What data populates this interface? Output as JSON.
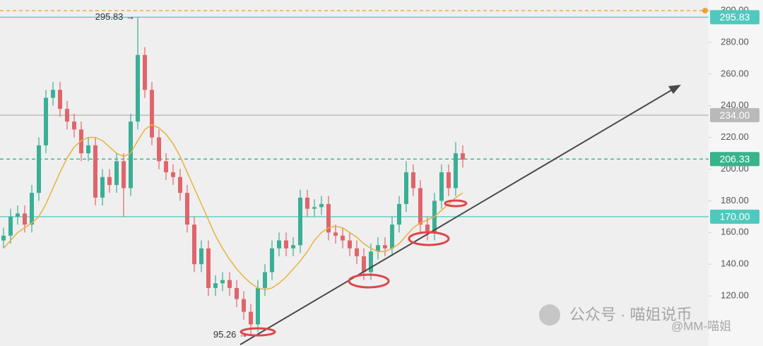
{
  "chart_data": {
    "type": "candlestick",
    "ylim": [
      88.4,
      306.7
    ],
    "yticks": [
      {
        "value": 120,
        "label": "120.00"
      },
      {
        "value": 140,
        "label": "140.00"
      },
      {
        "value": 160,
        "label": "160.00"
      },
      {
        "value": 180,
        "label": "180.00"
      },
      {
        "value": 200,
        "label": "200.00"
      },
      {
        "value": 220,
        "label": "220.00"
      },
      {
        "value": 240,
        "label": "240.00"
      },
      {
        "value": 260,
        "label": "260.00"
      },
      {
        "value": 280,
        "label": "280.00"
      },
      {
        "value": 300,
        "label": "300.00"
      }
    ],
    "up_color": "#3aaf95",
    "down_color": "#e0656a",
    "open": [
      155,
      158,
      170,
      172,
      165,
      185,
      215,
      245,
      250,
      238,
      230,
      225,
      210,
      215,
      182,
      195,
      190,
      205,
      188,
      230,
      272,
      250,
      220,
      205,
      198,
      195,
      185,
      165,
      140,
      150,
      125,
      128,
      130,
      125,
      118,
      110,
      102,
      125,
      135,
      150,
      155,
      150,
      152,
      182,
      175,
      176,
      178,
      160,
      158,
      155,
      150,
      145,
      135,
      148,
      152,
      150,
      165,
      178,
      198,
      188,
      165,
      160,
      180,
      198,
      188,
      210
    ],
    "high": [
      163,
      175,
      177,
      177,
      190,
      220,
      250,
      255,
      255,
      243,
      235,
      230,
      220,
      220,
      200,
      200,
      210,
      210,
      235,
      295.83,
      277,
      255,
      225,
      210,
      203,
      200,
      190,
      170,
      155,
      155,
      133,
      135,
      135,
      130,
      123,
      115,
      130,
      140,
      155,
      160,
      160,
      157,
      187,
      187,
      181,
      183,
      183,
      165,
      163,
      160,
      155,
      150,
      153,
      157,
      157,
      170,
      183,
      205,
      203,
      193,
      170,
      185,
      203,
      203,
      217,
      215
    ],
    "low": [
      150,
      153,
      165,
      160,
      160,
      180,
      210,
      240,
      233,
      225,
      220,
      205,
      205,
      177,
      177,
      185,
      185,
      170,
      183,
      225,
      245,
      215,
      200,
      193,
      190,
      180,
      160,
      135,
      135,
      120,
      120,
      123,
      120,
      113,
      105,
      95.26,
      97,
      120,
      130,
      145,
      145,
      145,
      147,
      170,
      170,
      171,
      155,
      153,
      150,
      145,
      140,
      130,
      130,
      143,
      145,
      145,
      160,
      173,
      183,
      160,
      155,
      155,
      175,
      183,
      183,
      201
    ],
    "close": [
      158,
      170,
      172,
      165,
      185,
      215,
      245,
      250,
      238,
      230,
      225,
      210,
      215,
      182,
      195,
      190,
      205,
      188,
      230,
      272,
      250,
      220,
      205,
      198,
      195,
      185,
      165,
      140,
      150,
      125,
      128,
      130,
      125,
      118,
      110,
      102,
      125,
      135,
      150,
      155,
      150,
      152,
      182,
      175,
      176,
      178,
      160,
      158,
      155,
      150,
      145,
      135,
      148,
      152,
      150,
      165,
      178,
      198,
      188,
      165,
      160,
      180,
      198,
      188,
      210,
      206
    ],
    "moving_average": {
      "color": "#e8b23a",
      "values": [
        150,
        155,
        160,
        163,
        166,
        170,
        178,
        188,
        198,
        207,
        214,
        218,
        220,
        220,
        218,
        214,
        210,
        208,
        210,
        218,
        225,
        228,
        226,
        222,
        216,
        208,
        198,
        188,
        178,
        168,
        158,
        150,
        143,
        137,
        132,
        128,
        125,
        124,
        125,
        128,
        132,
        137,
        142,
        148,
        155,
        160,
        163,
        164,
        163,
        160,
        157,
        153,
        150,
        148,
        148,
        150,
        153,
        158,
        163,
        166,
        168,
        170,
        174,
        178,
        182,
        185
      ]
    },
    "price_lines": [
      {
        "price": 300,
        "color": "#f0a030",
        "style": "dashed"
      },
      {
        "price": 295.83,
        "label": "295.83",
        "color": "#4fc9bd",
        "style": "solid"
      },
      {
        "price": 234,
        "label": "234.00",
        "color": "#b9b9b9",
        "style": "solid"
      },
      {
        "price": 206.33,
        "label": "206.33",
        "color": "#38b38c",
        "style": "dashed"
      },
      {
        "price": 170,
        "label": "170.00",
        "color": "#4fc9bd",
        "style": "solid"
      }
    ],
    "annotations": [
      {
        "text": "295.83 →",
        "price": 295.83,
        "candle": 19
      },
      {
        "text": "95.26 →",
        "price": 95.26,
        "candle": 35
      }
    ],
    "watermark": [
      "公众号 · 喵姐说币",
      "@MM-喵姐"
    ]
  }
}
